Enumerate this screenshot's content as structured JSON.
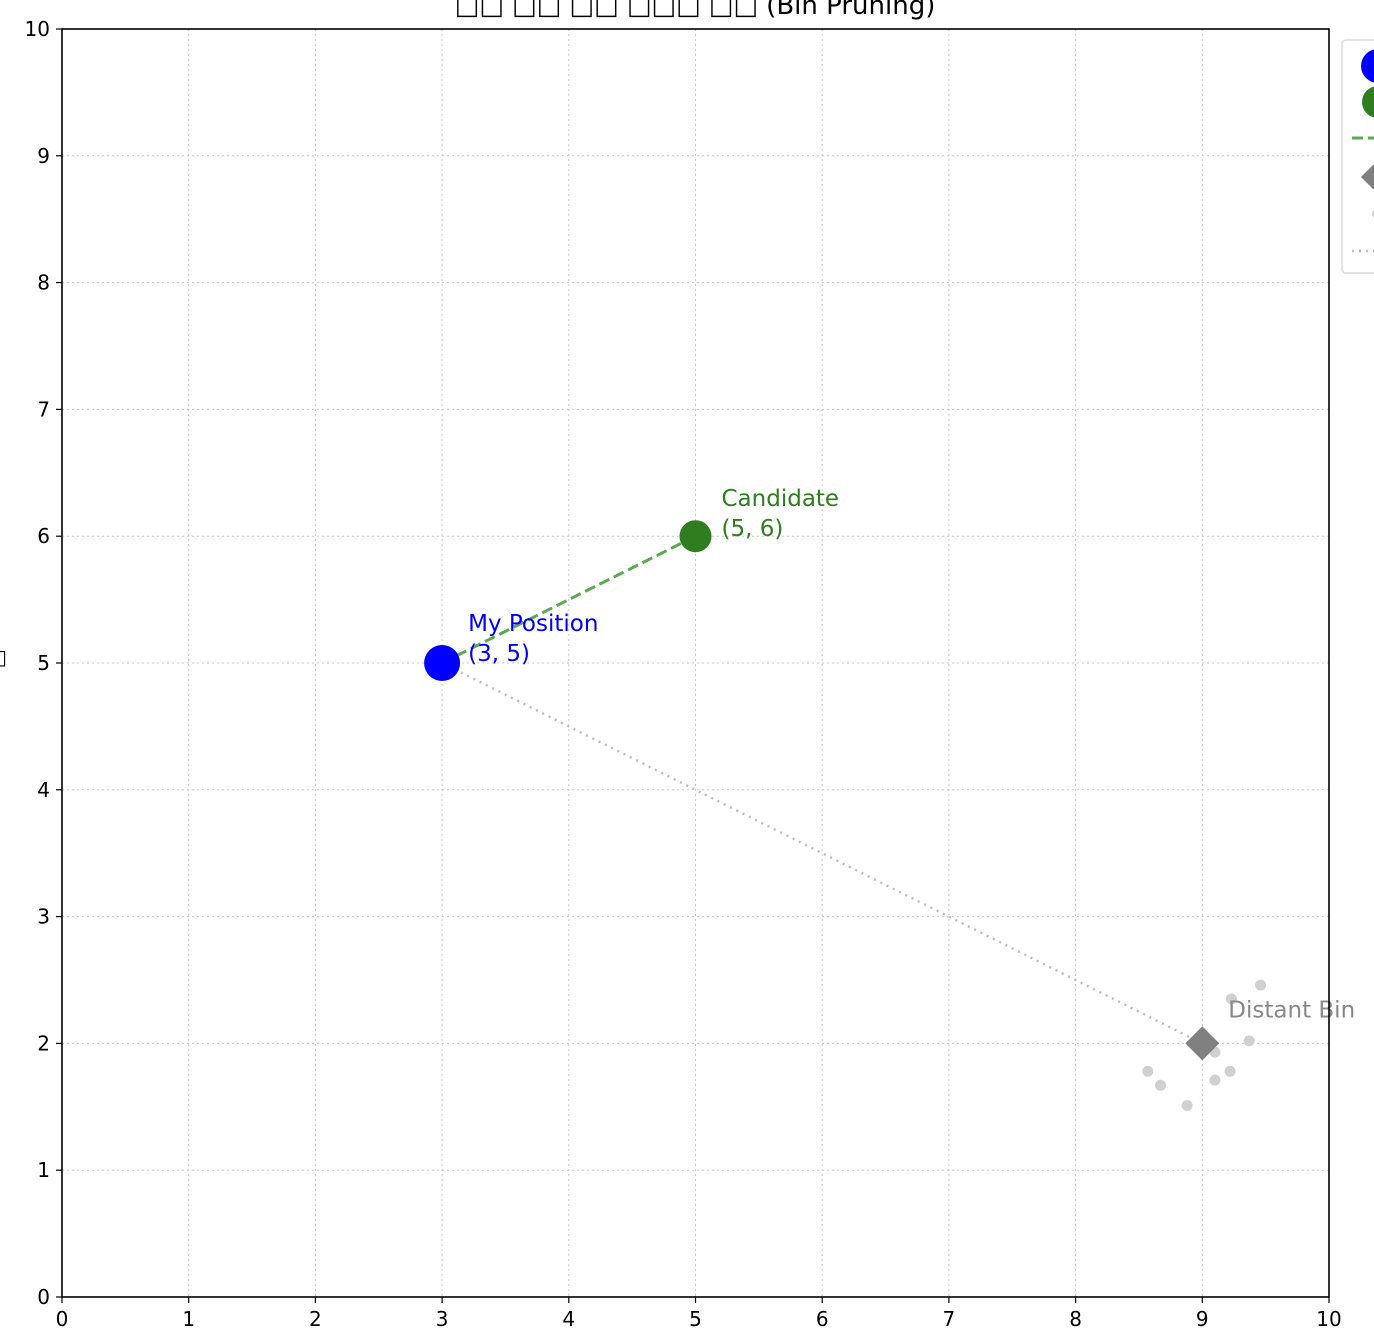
{
  "chart_data": {
    "type": "scatter",
    "title": "□□ □□ □□ □□□ □□ (Bin Pruning)",
    "xlabel": "",
    "ylabel": "",
    "xlim": [
      0,
      10
    ],
    "ylim": [
      0,
      10
    ],
    "xticks": [
      0,
      1,
      2,
      3,
      4,
      5,
      6,
      7,
      8,
      9,
      10
    ],
    "yticks": [
      0,
      1,
      2,
      3,
      4,
      5,
      6,
      7,
      8,
      9,
      10
    ],
    "grid": true,
    "legend_position": "upper-right-outside (clipped)",
    "points": {
      "my_position": {
        "x": 3,
        "y": 5,
        "label": "My Position\n(3, 5)",
        "color": "#0000ff"
      },
      "candidate": {
        "x": 5,
        "y": 6,
        "label": "Candidate\n(5, 6)",
        "color": "#2e7d1e"
      },
      "distant_bin": {
        "x": 9,
        "y": 2,
        "label": "Distant Bin",
        "color": "#808080"
      }
    },
    "candidate_line": {
      "from": [
        3,
        5
      ],
      "to": [
        5,
        6
      ],
      "style": "dashed",
      "color": "#5aaa50"
    },
    "pruned_line": {
      "from": [
        3,
        5
      ],
      "to": [
        9,
        2
      ],
      "style": "dotted",
      "color": "#bbbbbb"
    },
    "distant_cluster": [
      [
        8.57,
        1.78
      ],
      [
        8.67,
        1.67
      ],
      [
        8.88,
        1.51
      ],
      [
        9.1,
        1.71
      ],
      [
        9.22,
        1.78
      ],
      [
        9.37,
        2.02
      ],
      [
        9.46,
        2.46
      ],
      [
        9.23,
        2.35
      ],
      [
        9.1,
        1.93
      ]
    ]
  }
}
